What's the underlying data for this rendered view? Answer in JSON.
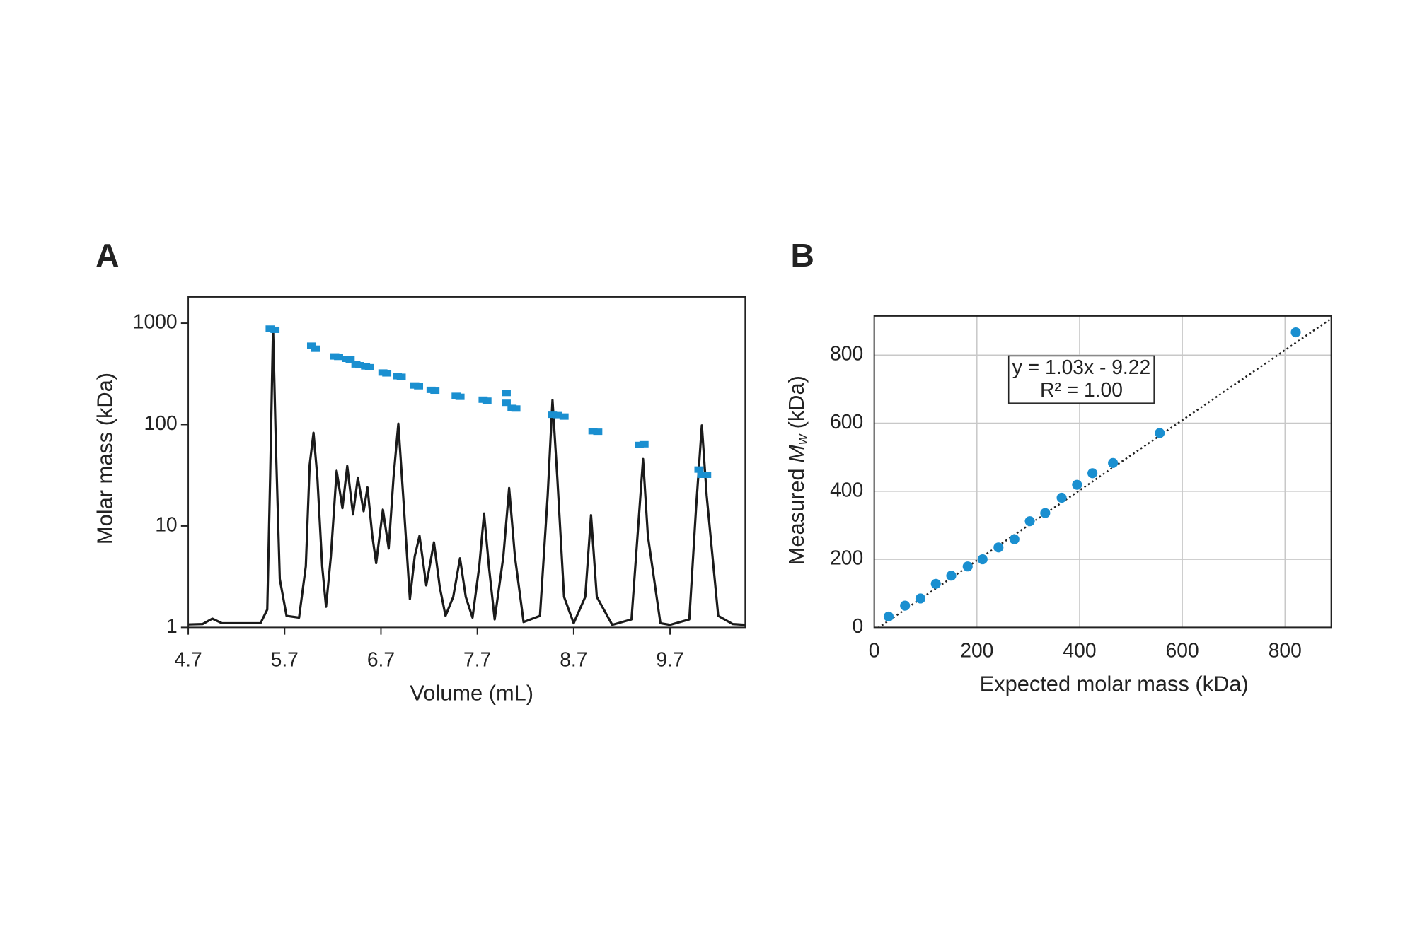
{
  "chart_data": [
    {
      "type": "line",
      "panel_label": "A",
      "xlabel": "Volume (mL)",
      "ylabel": "Molar mass (kDa)",
      "xlim": [
        4.7,
        10.48
      ],
      "ylim": [
        1,
        1815
      ],
      "log_y": true,
      "xticks": [
        4.7,
        5.7,
        6.7,
        7.7,
        8.7,
        9.7
      ],
      "yticks": [
        1,
        10,
        100,
        1000
      ],
      "series": [
        {
          "type": "line",
          "color": "#1a1a1a",
          "x": [
            4.7,
            4.85,
            4.95,
            5.05,
            5.3,
            5.45,
            5.52,
            5.55,
            5.58,
            5.61,
            5.65,
            5.72,
            5.85,
            5.92,
            5.96,
            6.0,
            6.04,
            6.09,
            6.13,
            6.18,
            6.24,
            6.3,
            6.35,
            6.41,
            6.46,
            6.52,
            6.56,
            6.61,
            6.65,
            6.72,
            6.78,
            6.83,
            6.88,
            6.93,
            7.0,
            7.05,
            7.1,
            7.17,
            7.25,
            7.31,
            7.37,
            7.45,
            7.52,
            7.58,
            7.65,
            7.72,
            7.77,
            7.82,
            7.88,
            7.97,
            8.03,
            8.09,
            8.18,
            8.35,
            8.43,
            8.48,
            8.53,
            8.6,
            8.7,
            8.82,
            8.88,
            8.94,
            9.1,
            9.3,
            9.37,
            9.42,
            9.47,
            9.6,
            9.7,
            9.9,
            9.97,
            10.03,
            10.08,
            10.2,
            10.35,
            10.48
          ],
          "values": [
            1.07,
            1.08,
            1.22,
            1.1,
            1.1,
            1.1,
            1.5,
            30,
            900,
            60,
            3,
            1.3,
            1.25,
            4,
            40,
            83,
            30,
            4,
            1.6,
            5,
            35,
            15,
            39,
            13,
            30,
            14,
            24,
            8,
            4.3,
            14.5,
            6,
            30,
            102,
            20,
            1.9,
            5,
            8,
            2.6,
            6.9,
            2.5,
            1.3,
            2,
            4.8,
            2,
            1.25,
            4,
            13.3,
            4,
            1.2,
            5,
            23.7,
            5,
            1.13,
            1.3,
            20,
            174,
            30,
            2,
            1.1,
            2,
            12.8,
            2,
            1.06,
            1.2,
            10,
            45.7,
            8,
            1.1,
            1.06,
            1.2,
            15,
            98,
            20,
            1.3,
            1.08,
            1.06
          ]
        },
        {
          "type": "scatter",
          "color": "#1a8fd0",
          "x": [
            5.55,
            5.6,
            5.98,
            6.02,
            6.22,
            6.26,
            6.34,
            6.38,
            6.44,
            6.48,
            6.54,
            6.58,
            6.72,
            6.76,
            6.87,
            6.91,
            7.05,
            7.09,
            7.22,
            7.26,
            7.48,
            7.52,
            7.76,
            7.8,
            8.0,
            8.0,
            8.06,
            8.1,
            8.48,
            8.53,
            8.6,
            8.9,
            8.95,
            9.38,
            9.43,
            10.0,
            10.03,
            10.08
          ],
          "values": [
            884,
            860,
            600,
            560,
            470,
            465,
            445,
            438,
            392,
            385,
            375,
            368,
            326,
            320,
            300,
            296,
            243,
            239,
            220,
            216,
            192,
            188,
            176,
            172,
            205,
            164,
            146,
            144,
            125,
            124,
            120,
            86,
            85,
            63,
            64,
            36,
            32,
            32
          ]
        }
      ]
    },
    {
      "type": "scatter",
      "panel_label": "B",
      "xlabel": "Expected molar mass (kDa)",
      "ylabel_parts": [
        "Measured",
        "M",
        "w",
        "(kDa)"
      ],
      "xlim": [
        0,
        890
      ],
      "ylim": [
        0,
        915
      ],
      "grid": true,
      "xticks": [
        0,
        200,
        400,
        600,
        800
      ],
      "yticks": [
        0,
        200,
        400,
        600,
        800
      ],
      "annotation": [
        "y = 1.03x - 9.22",
        "R² = 1.00"
      ],
      "fit_line": {
        "slope": 1.03,
        "intercept": -9.22
      },
      "series": [
        {
          "type": "scatter",
          "color": "#1a8fd0",
          "x": [
            28,
            60,
            90,
            120,
            150,
            182,
            211,
            242,
            273,
            303,
            333,
            365,
            395,
            425,
            465,
            556,
            821
          ],
          "values": [
            32,
            64,
            85,
            128,
            152,
            179,
            200,
            235,
            259,
            312,
            336,
            381,
            419,
            453,
            483,
            571,
            867
          ]
        }
      ]
    }
  ]
}
